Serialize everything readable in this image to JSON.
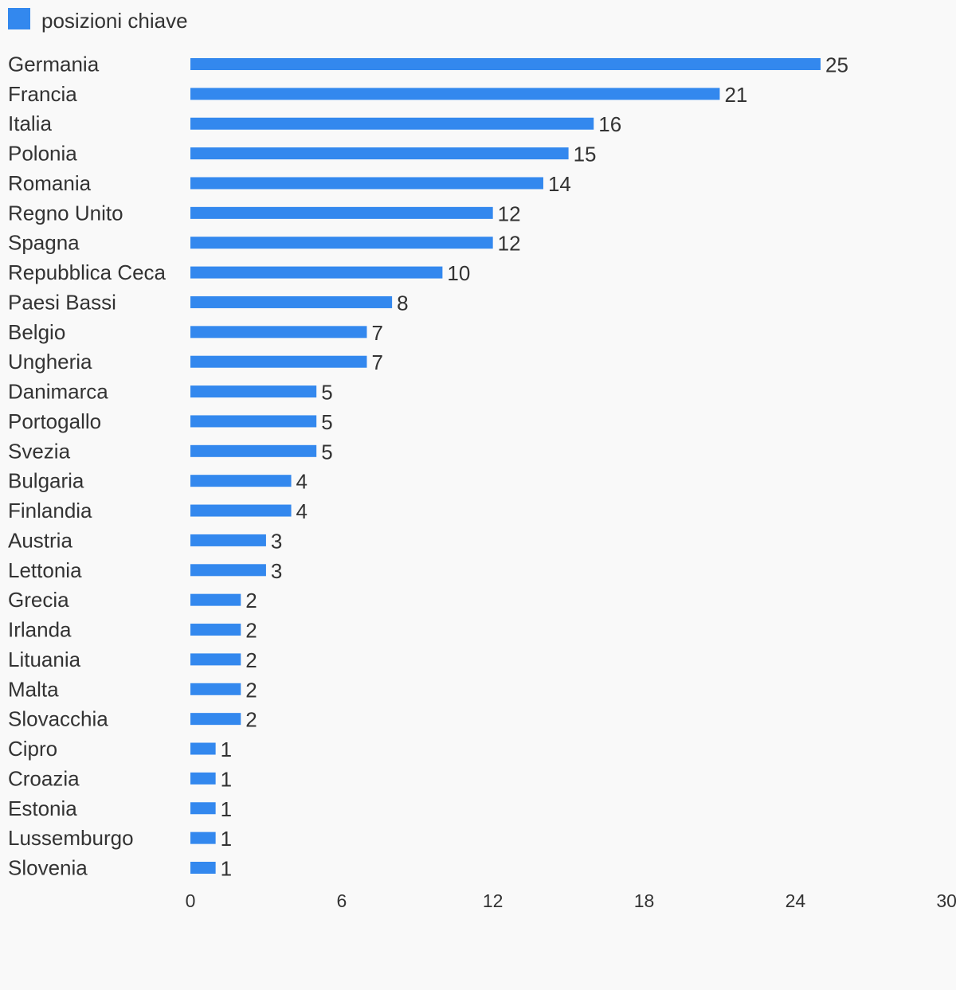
{
  "legend": {
    "label": "posizioni chiave"
  },
  "colors": {
    "bar": "#3388ee",
    "text": "#333333",
    "background": "#f9f9f9"
  },
  "chart_data": {
    "type": "bar",
    "orientation": "horizontal",
    "title": "",
    "xlabel": "",
    "ylabel": "",
    "legend_position": "top-left",
    "grid": false,
    "xlim": [
      0,
      30
    ],
    "x_ticks": [
      "0",
      "6",
      "12",
      "18",
      "24",
      "30"
    ],
    "categories": [
      "Germania",
      "Francia",
      "Italia",
      "Polonia",
      "Romania",
      "Regno Unito",
      "Spagna",
      "Repubblica Ceca",
      "Paesi Bassi",
      "Belgio",
      "Ungheria",
      "Danimarca",
      "Portogallo",
      "Svezia",
      "Bulgaria",
      "Finlandia",
      "Austria",
      "Lettonia",
      "Grecia",
      "Irlanda",
      "Lituania",
      "Malta",
      "Slovacchia",
      "Cipro",
      "Croazia",
      "Estonia",
      "Lussemburgo",
      "Slovenia"
    ],
    "series": [
      {
        "name": "posizioni chiave",
        "values": [
          25,
          21,
          16,
          15,
          14,
          12,
          12,
          10,
          8,
          7,
          7,
          5,
          5,
          5,
          4,
          4,
          3,
          3,
          2,
          2,
          2,
          2,
          2,
          1,
          1,
          1,
          1,
          1
        ]
      }
    ]
  }
}
